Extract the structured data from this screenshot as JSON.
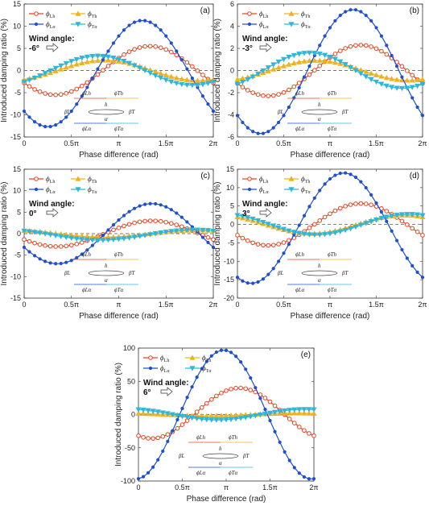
{
  "figure": {
    "ylabel": "Introduced damping ratio (%)",
    "xlabel": "Phase difference (rad)",
    "x_tick_labels": [
      "0",
      "0.5π",
      "π",
      "1.5π",
      "2π"
    ],
    "wind_label": "Wind angle:",
    "legend": {
      "Lh": {
        "sym": "ϕ",
        "sub": "Lh",
        "color": "#e8431e",
        "marker": "circle"
      },
      "Th": {
        "sym": "ϕ",
        "sub": "Th",
        "color": "#f0b21c",
        "marker": "triangle-up"
      },
      "La": {
        "sym": "ϕ",
        "sub": "Lα",
        "color": "#1f4fd1",
        "marker": "dot"
      },
      "Ta": {
        "sym": "ϕ",
        "sub": "Tα",
        "color": "#2fb6d9",
        "marker": "triangle-down"
      }
    },
    "sketch": {
      "phiLh": "ϕLh",
      "phiTh": "ϕTh",
      "h": "h",
      "betaL": "βL",
      "betaT": "βT",
      "alpha": "α",
      "phiLa": "ϕLα",
      "phiTa": "ϕTα"
    }
  },
  "chart_data": [
    {
      "type": "line",
      "panel": "(a)",
      "wind_angle": "-6°",
      "ylim": [
        -15,
        15
      ],
      "yticks": [
        -15,
        -10,
        -5,
        0,
        5,
        10,
        15
      ],
      "x_unit": "π rad",
      "xlim": [
        0,
        2
      ],
      "series": [
        {
          "key": "Lh",
          "amplitude": 5.5,
          "peak_at": 1.33,
          "offset": 0
        },
        {
          "key": "Th",
          "amplitude": 2.3,
          "peak_at": 0.85,
          "offset": 0
        },
        {
          "key": "La",
          "amplitude": 12,
          "peak_at": 1.25,
          "offset": -0.7
        },
        {
          "key": "Ta",
          "amplitude": 3.3,
          "peak_at": 0.78,
          "offset": 0
        }
      ]
    },
    {
      "type": "line",
      "panel": "(b)",
      "wind_angle": "-3°",
      "ylim": [
        -6,
        6
      ],
      "yticks": [
        -6,
        -4,
        -2,
        0,
        2,
        4,
        6
      ],
      "x_unit": "π rad",
      "xlim": [
        0,
        2
      ],
      "series": [
        {
          "key": "Lh",
          "amplitude": 2.3,
          "peak_at": 1.33,
          "offset": 0
        },
        {
          "key": "Th",
          "amplitude": 0.9,
          "peak_at": 0.85,
          "offset": 0
        },
        {
          "key": "La",
          "amplitude": 5.6,
          "peak_at": 1.25,
          "offset": -0.1
        },
        {
          "key": "Ta",
          "amplitude": 1.6,
          "peak_at": 0.78,
          "offset": 0
        }
      ]
    },
    {
      "type": "line",
      "panel": "(c)",
      "wind_angle": "0°",
      "ylim": [
        -15,
        15
      ],
      "yticks": [
        -15,
        -10,
        -5,
        0,
        5,
        10,
        15
      ],
      "x_unit": "π rad",
      "xlim": [
        0,
        2
      ],
      "series": [
        {
          "key": "Lh",
          "amplitude": 3.0,
          "peak_at": 1.35,
          "offset": 0
        },
        {
          "key": "Th",
          "amplitude": 0.8,
          "peak_at": 1.85,
          "offset": 0
        },
        {
          "key": "La",
          "amplitude": 7.0,
          "peak_at": 1.35,
          "offset": 0
        },
        {
          "key": "Ta",
          "amplitude": 1.2,
          "peak_at": 1.8,
          "offset": -0.3
        }
      ]
    },
    {
      "type": "line",
      "panel": "(d)",
      "wind_angle": "3°",
      "ylim": [
        -20,
        15
      ],
      "yticks": [
        -20,
        -15,
        -10,
        -5,
        0,
        5,
        10,
        15
      ],
      "x_unit": "π rad",
      "xlim": [
        0,
        2
      ],
      "series": [
        {
          "key": "Lh",
          "amplitude": 5.7,
          "peak_at": 1.33,
          "offset": 0
        },
        {
          "key": "Th",
          "amplitude": 2.5,
          "peak_at": 1.8,
          "offset": 0
        },
        {
          "key": "La",
          "amplitude": 15,
          "peak_at": 1.15,
          "offset": -1
        },
        {
          "key": "Ta",
          "amplitude": 2.8,
          "peak_at": 1.85,
          "offset": 0
        }
      ]
    },
    {
      "type": "line",
      "panel": "(e)",
      "wind_angle": "6°",
      "ylim": [
        -100,
        100
      ],
      "yticks": [
        -100,
        -50,
        0,
        50,
        100
      ],
      "x_unit": "π rad",
      "xlim": [
        0,
        2
      ],
      "series": [
        {
          "key": "Lh",
          "amplitude": 38,
          "peak_at": 1.15,
          "offset": 2
        },
        {
          "key": "Th",
          "amplitude": 2,
          "peak_at": 1.8,
          "offset": 0
        },
        {
          "key": "La",
          "amplitude": 97,
          "peak_at": 0.97,
          "offset": 0
        },
        {
          "key": "Ta",
          "amplitude": 8,
          "peak_at": 1.9,
          "offset": 0
        }
      ]
    }
  ]
}
